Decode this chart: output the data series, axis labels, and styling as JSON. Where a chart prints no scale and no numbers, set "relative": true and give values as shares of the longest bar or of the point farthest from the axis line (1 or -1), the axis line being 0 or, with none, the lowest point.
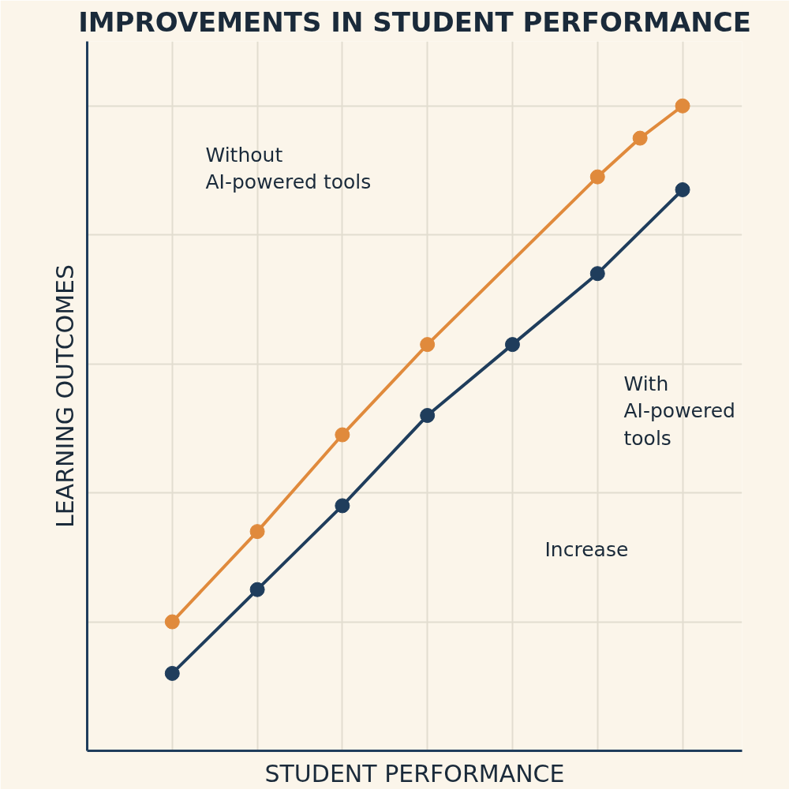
{
  "chart_data": {
    "type": "line",
    "title": "IMPROVEMENTS IN STUDENT PERFORMANCE",
    "xlabel": "STUDENT PERFORMANCE",
    "ylabel": "LEARNING OUTCOMES",
    "relative": true,
    "marker": "circle",
    "grid": true,
    "categories": [
      null,
      null,
      null,
      null,
      null,
      null,
      null,
      null,
      null,
      null,
      null,
      null,
      null
    ],
    "series": [
      {
        "color": "#e08a3c",
        "values": [
          0.2,
          null,
          0.34,
          null,
          0.49,
          null,
          0.63,
          null,
          null,
          null,
          0.89,
          0.95,
          1.0
        ]
      },
      {
        "color": "#1f3d5c",
        "values": [
          0.12,
          null,
          0.25,
          null,
          0.38,
          null,
          0.52,
          null,
          0.63,
          null,
          0.74,
          null,
          0.87
        ]
      }
    ],
    "annotations": [
      "Without\nAI-powered tools",
      "With\nAI-powered\ntools",
      "Increase"
    ]
  }
}
